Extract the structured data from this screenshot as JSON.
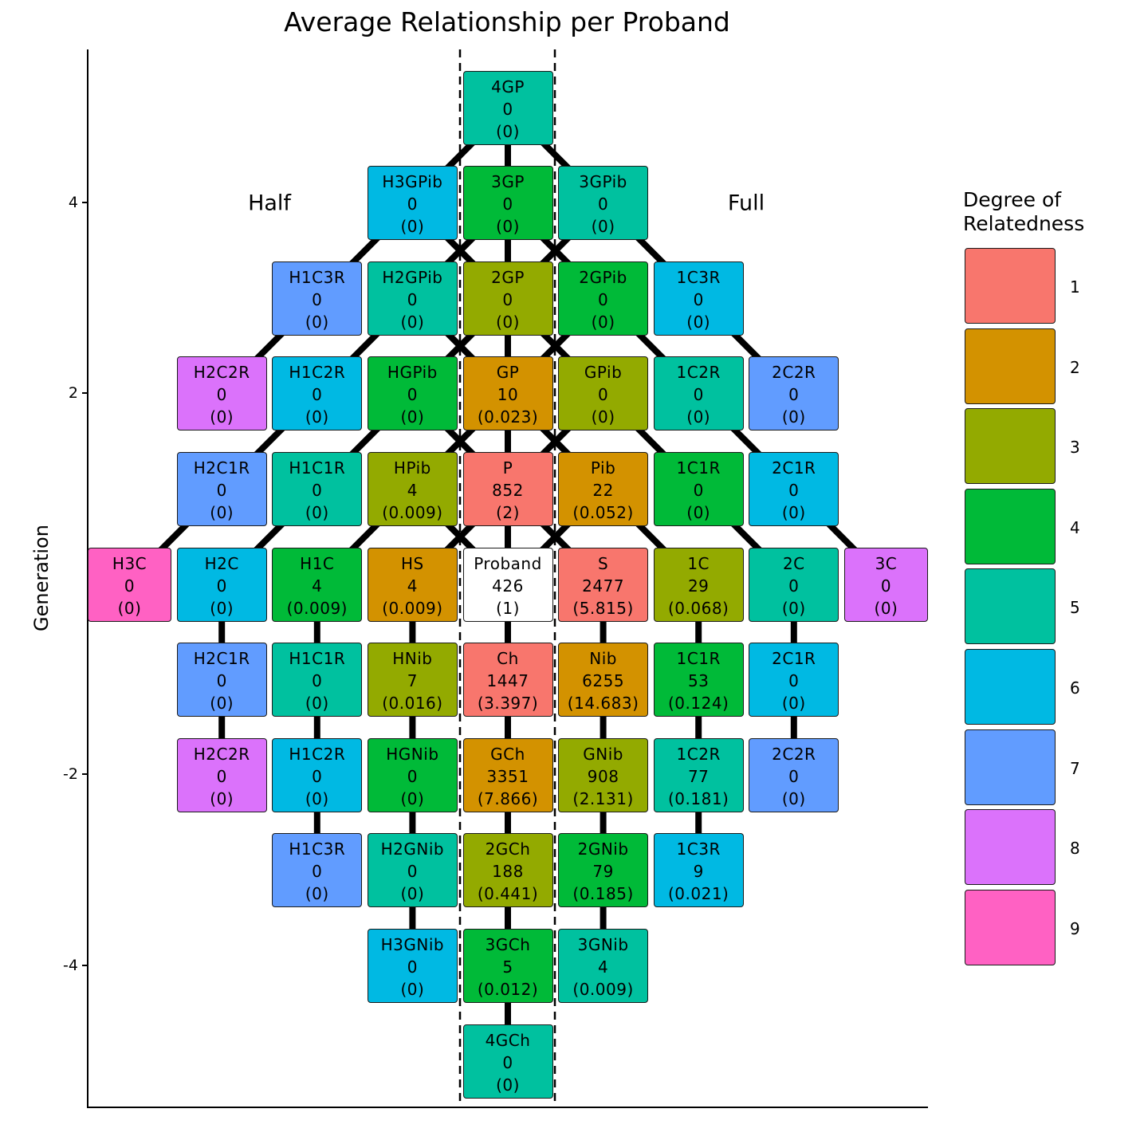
{
  "title": "Average Relationship per Proband",
  "y_axis": {
    "label": "Generation",
    "ticks": [
      "4",
      "2",
      "-2",
      "-4"
    ],
    "tick_values": [
      4,
      2,
      -2,
      -4
    ]
  },
  "annotations": {
    "half": "Half",
    "full": "Full"
  },
  "legend": {
    "title_line1": "Degree of",
    "title_line2": "Relatedness",
    "items": [
      {
        "label": "1",
        "color": "#F8766D"
      },
      {
        "label": "2",
        "color": "#D39200"
      },
      {
        "label": "3",
        "color": "#93AA00"
      },
      {
        "label": "4",
        "color": "#00BA38"
      },
      {
        "label": "5",
        "color": "#00C19F"
      },
      {
        "label": "6",
        "color": "#00B9E3"
      },
      {
        "label": "7",
        "color": "#619CFF"
      },
      {
        "label": "8",
        "color": "#DB72FB"
      },
      {
        "label": "9",
        "color": "#FF61C3"
      }
    ]
  },
  "chart_data": {
    "type": "table",
    "title": "Average Relationship per Proband",
    "xlabel": "",
    "ylabel": "Generation",
    "ylim": [
      -5.5,
      5.5
    ],
    "regions": [
      "Half",
      "Full"
    ],
    "legend_title": "Degree of Relatedness",
    "nodes": [
      {
        "id": "4GP",
        "count": "0",
        "avg": "(0)",
        "gen": 5,
        "col": 0,
        "degree": 5
      },
      {
        "id": "H3GPib",
        "count": "0",
        "avg": "(0)",
        "gen": 4,
        "col": -1,
        "degree": 6
      },
      {
        "id": "3GP",
        "count": "0",
        "avg": "(0)",
        "gen": 4,
        "col": 0,
        "degree": 4
      },
      {
        "id": "3GPib",
        "count": "0",
        "avg": "(0)",
        "gen": 4,
        "col": 1,
        "degree": 5
      },
      {
        "id": "H1C3R",
        "count": "0",
        "avg": "(0)",
        "gen": 3,
        "col": -2,
        "degree": 7
      },
      {
        "id": "H2GPib",
        "count": "0",
        "avg": "(0)",
        "gen": 3,
        "col": -1,
        "degree": 5
      },
      {
        "id": "2GP",
        "count": "0",
        "avg": "(0)",
        "gen": 3,
        "col": 0,
        "degree": 3
      },
      {
        "id": "2GPib",
        "count": "0",
        "avg": "(0)",
        "gen": 3,
        "col": 1,
        "degree": 4
      },
      {
        "id": "1C3R",
        "count": "0",
        "avg": "(0)",
        "gen": 3,
        "col": 2,
        "degree": 6
      },
      {
        "id": "H2C2R",
        "count": "0",
        "avg": "(0)",
        "gen": 2,
        "col": -3,
        "degree": 8
      },
      {
        "id": "H1C2R",
        "count": "0",
        "avg": "(0)",
        "gen": 2,
        "col": -2,
        "degree": 6
      },
      {
        "id": "HGPib",
        "count": "0",
        "avg": "(0)",
        "gen": 2,
        "col": -1,
        "degree": 4
      },
      {
        "id": "GP",
        "count": "10",
        "avg": "(0.023)",
        "gen": 2,
        "col": 0,
        "degree": 2
      },
      {
        "id": "GPib",
        "count": "0",
        "avg": "(0)",
        "gen": 2,
        "col": 1,
        "degree": 3
      },
      {
        "id": "1C2R",
        "count": "0",
        "avg": "(0)",
        "gen": 2,
        "col": 2,
        "degree": 5
      },
      {
        "id": "2C2R",
        "count": "0",
        "avg": "(0)",
        "gen": 2,
        "col": 3,
        "degree": 7
      },
      {
        "id": "H2C1R",
        "count": "0",
        "avg": "(0)",
        "gen": 1,
        "col": -3,
        "degree": 7
      },
      {
        "id": "H1C1R",
        "count": "0",
        "avg": "(0)",
        "gen": 1,
        "col": -2,
        "degree": 5
      },
      {
        "id": "HPib",
        "count": "4",
        "avg": "(0.009)",
        "gen": 1,
        "col": -1,
        "degree": 3
      },
      {
        "id": "P",
        "count": "852",
        "avg": "(2)",
        "gen": 1,
        "col": 0,
        "degree": 1
      },
      {
        "id": "Pib",
        "count": "22",
        "avg": "(0.052)",
        "gen": 1,
        "col": 1,
        "degree": 2
      },
      {
        "id": "1C1R",
        "count": "0",
        "avg": "(0)",
        "gen": 1,
        "col": 2,
        "degree": 4
      },
      {
        "id": "2C1R",
        "count": "0",
        "avg": "(0)",
        "gen": 1,
        "col": 3,
        "degree": 6
      },
      {
        "id": "H3C",
        "count": "0",
        "avg": "(0)",
        "gen": 0,
        "col": -4,
        "degree": 9
      },
      {
        "id": "H2C",
        "count": "0",
        "avg": "(0)",
        "gen": 0,
        "col": -3,
        "degree": 6
      },
      {
        "id": "H1C",
        "count": "4",
        "avg": "(0.009)",
        "gen": 0,
        "col": -2,
        "degree": 4
      },
      {
        "id": "HS",
        "count": "4",
        "avg": "(0.009)",
        "gen": 0,
        "col": -1,
        "degree": 2
      },
      {
        "id": "Proband",
        "count": "426",
        "avg": "(1)",
        "gen": 0,
        "col": 0,
        "degree": null
      },
      {
        "id": "S",
        "count": "2477",
        "avg": "(5.815)",
        "gen": 0,
        "col": 1,
        "degree": 1
      },
      {
        "id": "1C",
        "count": "29",
        "avg": "(0.068)",
        "gen": 0,
        "col": 2,
        "degree": 3
      },
      {
        "id": "2C",
        "count": "0",
        "avg": "(0)",
        "gen": 0,
        "col": 3,
        "degree": 5
      },
      {
        "id": "3C",
        "count": "0",
        "avg": "(0)",
        "gen": 0,
        "col": 4,
        "degree": 8
      },
      {
        "id": "H2C1R",
        "count": "0",
        "avg": "(0)",
        "gen": -1,
        "col": -3,
        "degree": 7
      },
      {
        "id": "H1C1R",
        "count": "0",
        "avg": "(0)",
        "gen": -1,
        "col": -2,
        "degree": 5
      },
      {
        "id": "HNib",
        "count": "7",
        "avg": "(0.016)",
        "gen": -1,
        "col": -1,
        "degree": 3
      },
      {
        "id": "Ch",
        "count": "1447",
        "avg": "(3.397)",
        "gen": -1,
        "col": 0,
        "degree": 1
      },
      {
        "id": "Nib",
        "count": "6255",
        "avg": "(14.683)",
        "gen": -1,
        "col": 1,
        "degree": 2
      },
      {
        "id": "1C1R",
        "count": "53",
        "avg": "(0.124)",
        "gen": -1,
        "col": 2,
        "degree": 4
      },
      {
        "id": "2C1R",
        "count": "0",
        "avg": "(0)",
        "gen": -1,
        "col": 3,
        "degree": 6
      },
      {
        "id": "H2C2R",
        "count": "0",
        "avg": "(0)",
        "gen": -2,
        "col": -3,
        "degree": 8
      },
      {
        "id": "H1C2R",
        "count": "0",
        "avg": "(0)",
        "gen": -2,
        "col": -2,
        "degree": 6
      },
      {
        "id": "HGNib",
        "count": "0",
        "avg": "(0)",
        "gen": -2,
        "col": -1,
        "degree": 4
      },
      {
        "id": "GCh",
        "count": "3351",
        "avg": "(7.866)",
        "gen": -2,
        "col": 0,
        "degree": 2
      },
      {
        "id": "GNib",
        "count": "908",
        "avg": "(2.131)",
        "gen": -2,
        "col": 1,
        "degree": 3
      },
      {
        "id": "1C2R",
        "count": "77",
        "avg": "(0.181)",
        "gen": -2,
        "col": 2,
        "degree": 5
      },
      {
        "id": "2C2R",
        "count": "0",
        "avg": "(0)",
        "gen": -2,
        "col": 3,
        "degree": 7
      },
      {
        "id": "H1C3R",
        "count": "0",
        "avg": "(0)",
        "gen": -3,
        "col": -2,
        "degree": 7
      },
      {
        "id": "H2GNib",
        "count": "0",
        "avg": "(0)",
        "gen": -3,
        "col": -1,
        "degree": 5
      },
      {
        "id": "2GCh",
        "count": "188",
        "avg": "(0.441)",
        "gen": -3,
        "col": 0,
        "degree": 3
      },
      {
        "id": "2GNib",
        "count": "79",
        "avg": "(0.185)",
        "gen": -3,
        "col": 1,
        "degree": 4
      },
      {
        "id": "1C3R",
        "count": "9",
        "avg": "(0.021)",
        "gen": -3,
        "col": 2,
        "degree": 6
      },
      {
        "id": "H3GNib",
        "count": "0",
        "avg": "(0)",
        "gen": -4,
        "col": -1,
        "degree": 6
      },
      {
        "id": "3GCh",
        "count": "5",
        "avg": "(0.012)",
        "gen": -4,
        "col": 0,
        "degree": 4
      },
      {
        "id": "3GNib",
        "count": "4",
        "avg": "(0.009)",
        "gen": -4,
        "col": 1,
        "degree": 5
      },
      {
        "id": "4GCh",
        "count": "0",
        "avg": "(0)",
        "gen": -5,
        "col": 0,
        "degree": 5
      }
    ]
  }
}
